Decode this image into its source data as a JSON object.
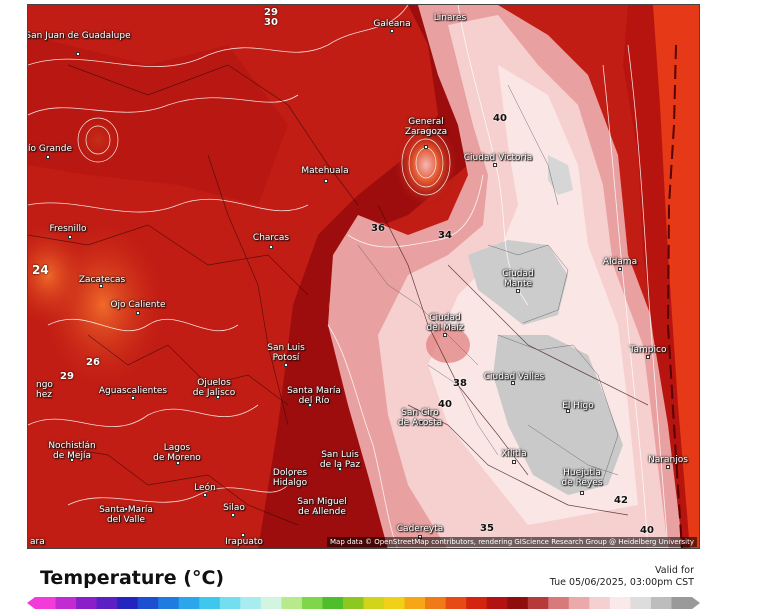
{
  "header": {
    "title": "Temperature (°C)",
    "valid_label": "Valid for",
    "valid_time": "Tue 05/06/2025, 03:00pm CST"
  },
  "map": {
    "attribution": "Map data © OpenStreetMap contributors, rendering GIScience Research Group @ Heidelberg University",
    "colors": {
      "dark_red": "#a50f0f",
      "mid_red": "#c91a12",
      "orange_red": "#e6391a",
      "pink": "#f2b3b3",
      "pale_pink": "#fbe3e3",
      "hot_grey": "#c8c8c8"
    },
    "cities": [
      {
        "id": "san-juan-de-guadalupe",
        "name": "San Juan\nde Guadalupe"
      },
      {
        "id": "galeana",
        "name": "Galeana"
      },
      {
        "id": "linares",
        "name": "Linares"
      },
      {
        "id": "rio-grande",
        "name": "ío Grande"
      },
      {
        "id": "general-zaragoza",
        "name": "General\nZaragoza"
      },
      {
        "id": "ciudad-victoria",
        "name": "Ciudad Victoria"
      },
      {
        "id": "matehuala",
        "name": "Matehuala"
      },
      {
        "id": "fresnillo",
        "name": "Fresnillo"
      },
      {
        "id": "charcas",
        "name": "Charcas"
      },
      {
        "id": "aldama",
        "name": "Aldama"
      },
      {
        "id": "ciudad-mante",
        "name": "Ciudad\nMante"
      },
      {
        "id": "zacatecas",
        "name": "Zacatecas"
      },
      {
        "id": "ojo-caliente",
        "name": "Ojo Caliente"
      },
      {
        "id": "ciudad-del-maiz",
        "name": "Ciudad\ndel Maíz"
      },
      {
        "id": "tampico",
        "name": "Tampico"
      },
      {
        "id": "san-luis-potosi",
        "name": "San Luis\nPotosí"
      },
      {
        "id": "ciudad-valles",
        "name": "Ciudad Valles"
      },
      {
        "id": "lagos-edge",
        "name": "ngo\nhez"
      },
      {
        "id": "aguascalientes",
        "name": "Aguascalientes"
      },
      {
        "id": "ojuelos-de-jalisco",
        "name": "Ojuelos\nde Jalisco"
      },
      {
        "id": "santa-maria-del-rio",
        "name": "Santa María\ndel Río"
      },
      {
        "id": "el-higo",
        "name": "El Higo"
      },
      {
        "id": "san-ciro-de-acosta",
        "name": "San Ciro\nde Acosta"
      },
      {
        "id": "nochistlan-de-mejia",
        "name": "Nochistlán\nde Mejía"
      },
      {
        "id": "lagos-de-moreno",
        "name": "Lagos\nde Moreno"
      },
      {
        "id": "xilitla",
        "name": "Xilitla"
      },
      {
        "id": "san-luis-de-la-paz",
        "name": "San Luis\nde la Paz"
      },
      {
        "id": "naranjos",
        "name": "Naranjos"
      },
      {
        "id": "dolores-hidalgo",
        "name": "Dolores\nHidalgo"
      },
      {
        "id": "huejutla-de-reyes",
        "name": "Huejutla\nde Reyes"
      },
      {
        "id": "leon",
        "name": "León"
      },
      {
        "id": "santa-maria-del-valle",
        "name": "Santa María\ndel Valle"
      },
      {
        "id": "silao",
        "name": "Silao"
      },
      {
        "id": "san-miguel-de-allende",
        "name": "San Miguel\nde Allende"
      },
      {
        "id": "cadereyta",
        "name": "Cadereyta"
      },
      {
        "id": "irapuato",
        "name": "Irapuato"
      },
      {
        "id": "ara-edge",
        "name": "ara"
      }
    ],
    "contour_labels": [
      "29",
      "30",
      "40",
      "36",
      "34",
      "38",
      "40",
      "26",
      "29",
      "35",
      "42",
      "40",
      "24"
    ]
  },
  "colorbar": {
    "colors": [
      "#f23bd9",
      "#c22bd1",
      "#8a1fc9",
      "#5b1fc4",
      "#2424bf",
      "#1d4fd1",
      "#1f7be0",
      "#2aa6ea",
      "#40c7ee",
      "#73def0",
      "#a8ecef",
      "#d2f4e0",
      "#b7ea8c",
      "#7fd649",
      "#4fbe2c",
      "#8cc81f",
      "#d2d41a",
      "#f0d018",
      "#f5a715",
      "#ef7a16",
      "#e64a15",
      "#d3240f",
      "#b31212",
      "#8e0d0d",
      "#b73a3a",
      "#d87a7a",
      "#ebaaaa",
      "#f5d0d0",
      "#fbe9e9",
      "#dddddd",
      "#bdbdbd",
      "#9a9a9a"
    ]
  }
}
